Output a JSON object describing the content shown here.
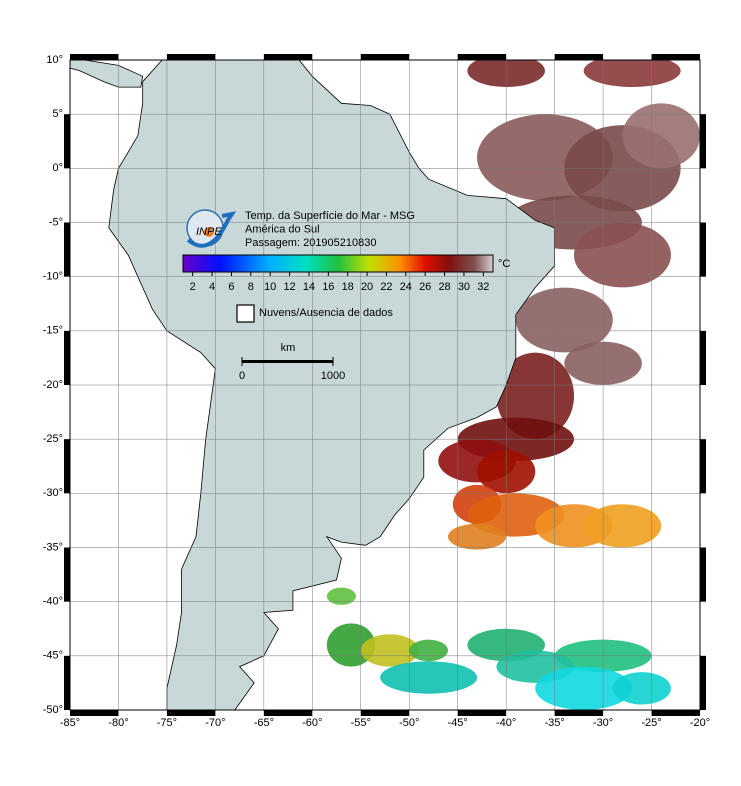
{
  "map": {
    "title_lines": [
      "Temp. da Superfície do Mar - MSG",
      "América do Sul",
      "Passagem: 201905210830"
    ],
    "logo_text": "INPE",
    "lon_range": [
      -85,
      -20
    ],
    "lat_range": [
      10,
      -50
    ],
    "lon_ticks": [
      {
        "value": -85,
        "label": "-85°"
      },
      {
        "value": -80,
        "label": "-80°"
      },
      {
        "value": -75,
        "label": "-75°"
      },
      {
        "value": -70,
        "label": "-70°"
      },
      {
        "value": -65,
        "label": "-65°"
      },
      {
        "value": -60,
        "label": "-60°"
      },
      {
        "value": -55,
        "label": "-55°"
      },
      {
        "value": -50,
        "label": "-50°"
      },
      {
        "value": -45,
        "label": "-45°"
      },
      {
        "value": -40,
        "label": "-40°"
      },
      {
        "value": -35,
        "label": "-35°"
      },
      {
        "value": -30,
        "label": "-30°"
      },
      {
        "value": -25,
        "label": "-25°"
      },
      {
        "value": -20,
        "label": "-20°"
      }
    ],
    "lat_ticks": [
      {
        "value": 10,
        "label": "10°"
      },
      {
        "value": 5,
        "label": "5°"
      },
      {
        "value": 0,
        "label": "0°"
      },
      {
        "value": -5,
        "label": "-5°"
      },
      {
        "value": -10,
        "label": "-10°"
      },
      {
        "value": -15,
        "label": "-15°"
      },
      {
        "value": -20,
        "label": "-20°"
      },
      {
        "value": -25,
        "label": "-25°"
      },
      {
        "value": -30,
        "label": "-30°"
      },
      {
        "value": -35,
        "label": "-35°"
      },
      {
        "value": -40,
        "label": "-40°"
      },
      {
        "value": -45,
        "label": "-45°"
      },
      {
        "value": -50,
        "label": "-50°"
      }
    ],
    "colorbar": {
      "unit": "°C",
      "range": [
        1,
        33
      ],
      "ticks": [
        2,
        4,
        6,
        8,
        10,
        12,
        14,
        16,
        18,
        20,
        22,
        24,
        26,
        28,
        30,
        32
      ]
    },
    "legend": "Nuvens/Ausencia de dados",
    "scale_bar": {
      "unit": "km",
      "ticks": [
        0,
        1000
      ]
    }
  }
}
